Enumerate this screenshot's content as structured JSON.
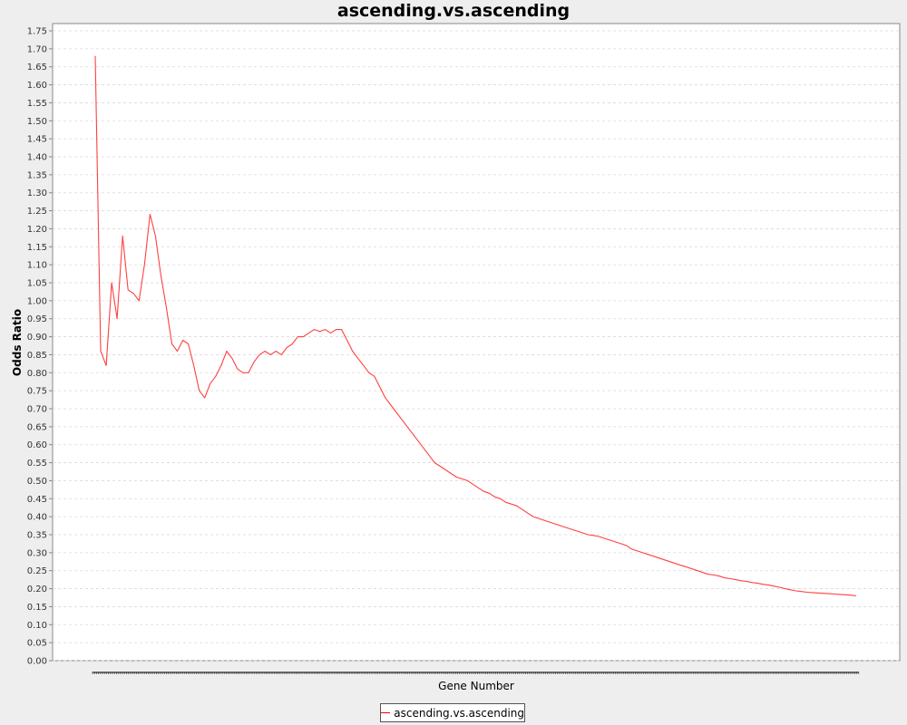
{
  "colors": {
    "series": "#ff4040",
    "plot_bg": "#ffffff",
    "grid": "#d9d9d9",
    "background": "#eeeeee"
  },
  "chart_data": {
    "type": "line",
    "title": "ascending.vs.ascending",
    "xlabel": "Gene Number",
    "ylabel": "Odds Ratio",
    "ylim": [
      0,
      1.75
    ],
    "ytick_step": 0.05,
    "x_tick_labels": "none",
    "grid": true,
    "legend": "bottom-center",
    "series": [
      {
        "name": "ascending.vs.ascending",
        "x": [
          1,
          2,
          3,
          4,
          5,
          6,
          7,
          8,
          9,
          10,
          11,
          12,
          13,
          14,
          15,
          16,
          17,
          18,
          19,
          20,
          21,
          22,
          23,
          24,
          25,
          26,
          27,
          28,
          29,
          30,
          31,
          32,
          33,
          34,
          35,
          36,
          37,
          38,
          39,
          40,
          41,
          42,
          43,
          44,
          45,
          46,
          47,
          48,
          49,
          50,
          51,
          52,
          53,
          54,
          55,
          56,
          57,
          58,
          59,
          60,
          61,
          62,
          63,
          64,
          65,
          66,
          67,
          68,
          69,
          70,
          71,
          72,
          73,
          74,
          75,
          76,
          77,
          78,
          79,
          80,
          81,
          82,
          83,
          84,
          85,
          86,
          87,
          88,
          89,
          90,
          91,
          92,
          93,
          94,
          95,
          96,
          97,
          98,
          99,
          100,
          101,
          102,
          103,
          104,
          105,
          106,
          107,
          108,
          109,
          110,
          111,
          112,
          113,
          114,
          115,
          116,
          117,
          118,
          119,
          120,
          121,
          122,
          123,
          124,
          125,
          126,
          127,
          128,
          129,
          130,
          131,
          132,
          133,
          134,
          135,
          136,
          137,
          138,
          139,
          140
        ],
        "y": [
          1.68,
          0.86,
          0.82,
          1.05,
          0.95,
          1.18,
          1.03,
          1.02,
          1.0,
          1.1,
          1.24,
          1.18,
          1.07,
          0.98,
          0.88,
          0.86,
          0.89,
          0.88,
          0.82,
          0.75,
          0.73,
          0.77,
          0.79,
          0.82,
          0.86,
          0.84,
          0.81,
          0.8,
          0.8,
          0.83,
          0.85,
          0.86,
          0.85,
          0.86,
          0.85,
          0.87,
          0.88,
          0.9,
          0.9,
          0.91,
          0.92,
          0.915,
          0.92,
          0.91,
          0.92,
          0.92,
          0.89,
          0.86,
          0.84,
          0.82,
          0.8,
          0.79,
          0.76,
          0.73,
          0.71,
          0.69,
          0.67,
          0.65,
          0.63,
          0.61,
          0.59,
          0.57,
          0.55,
          0.54,
          0.53,
          0.52,
          0.51,
          0.505,
          0.5,
          0.49,
          0.48,
          0.47,
          0.465,
          0.455,
          0.45,
          0.44,
          0.435,
          0.43,
          0.42,
          0.41,
          0.4,
          0.395,
          0.39,
          0.385,
          0.38,
          0.375,
          0.37,
          0.365,
          0.36,
          0.355,
          0.35,
          0.348,
          0.345,
          0.34,
          0.335,
          0.33,
          0.325,
          0.32,
          0.31,
          0.305,
          0.3,
          0.295,
          0.29,
          0.285,
          0.28,
          0.275,
          0.27,
          0.265,
          0.26,
          0.255,
          0.25,
          0.245,
          0.24,
          0.238,
          0.235,
          0.23,
          0.228,
          0.225,
          0.222,
          0.22,
          0.217,
          0.215,
          0.212,
          0.21,
          0.207,
          0.204,
          0.2,
          0.197,
          0.194,
          0.192,
          0.19,
          0.189,
          0.188,
          0.187,
          0.186,
          0.185,
          0.184,
          0.183,
          0.182,
          0.18
        ]
      }
    ]
  }
}
